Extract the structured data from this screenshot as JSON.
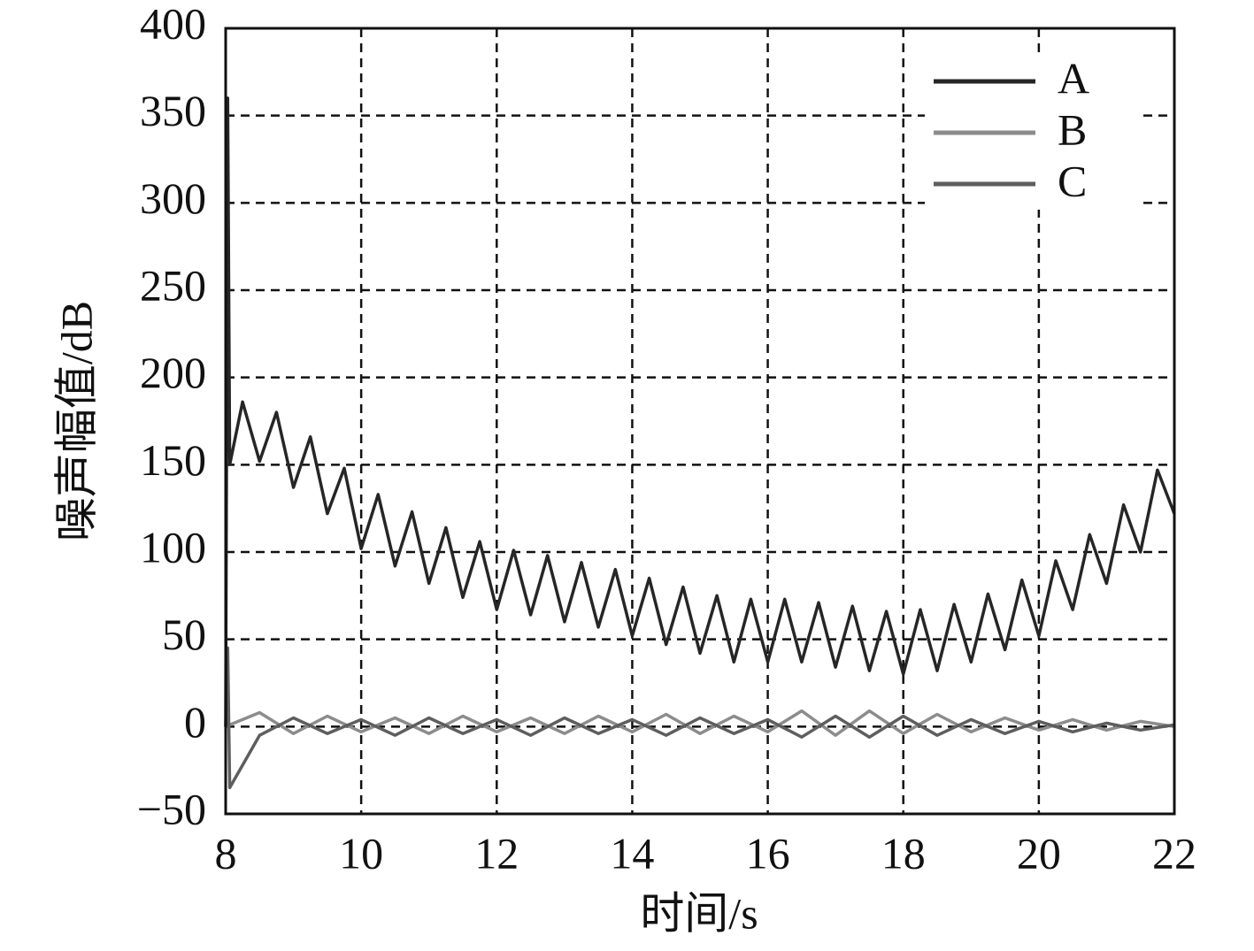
{
  "chart_data": {
    "type": "line",
    "xlabel": "时间/s",
    "ylabel": "噪声幅值/dB",
    "xlim": [
      8,
      22
    ],
    "xticks": [
      8,
      10,
      12,
      14,
      16,
      18,
      20,
      22
    ],
    "ylim": [
      -50,
      400
    ],
    "yticks": [
      {
        "value": -50,
        "label": "−50"
      },
      0,
      50,
      100,
      150,
      200,
      250,
      300,
      350,
      400
    ],
    "grid": true,
    "legend": "upper right",
    "series": [
      {
        "name": "A",
        "color": "#262626",
        "x": [
          8,
          8.03,
          8.06,
          8.25,
          8.5,
          8.75,
          9,
          9.25,
          9.5,
          9.75,
          10,
          10.25,
          10.5,
          10.75,
          11,
          11.25,
          11.5,
          11.75,
          12,
          12.25,
          12.5,
          12.75,
          13,
          13.25,
          13.5,
          13.75,
          14,
          14.25,
          14.5,
          14.75,
          15,
          15.25,
          15.5,
          15.75,
          16,
          16.25,
          16.5,
          16.75,
          17,
          17.25,
          17.5,
          17.75,
          18,
          18.25,
          18.5,
          18.75,
          19,
          19.25,
          19.5,
          19.75,
          20,
          20.25,
          20.5,
          20.75,
          21,
          21.25,
          21.5,
          21.75,
          22
        ],
        "values": [
          0,
          360,
          150,
          186,
          152,
          180,
          137,
          166,
          122,
          148,
          102,
          133,
          92,
          123,
          82,
          114,
          74,
          106,
          67,
          101,
          64,
          98,
          60,
          94,
          57,
          90,
          52,
          85,
          47,
          80,
          42,
          75,
          37,
          73,
          37,
          73,
          37,
          71,
          34,
          69,
          32,
          66,
          30,
          67,
          32,
          70,
          37,
          76,
          44,
          84,
          52,
          95,
          67,
          110,
          82,
          127,
          100,
          147,
          122
        ]
      },
      {
        "name": "B",
        "color": "#8c8c8c",
        "x": [
          8,
          8.5,
          9,
          9.5,
          10,
          10.5,
          11,
          11.5,
          12,
          12.5,
          13,
          13.5,
          14,
          14.5,
          15,
          15.5,
          16,
          16.5,
          17,
          17.5,
          18,
          18.5,
          19,
          19.5,
          20,
          20.5,
          21,
          21.5,
          22
        ],
        "values": [
          0,
          8,
          -4,
          6,
          -3,
          5,
          -4,
          6,
          -3,
          5,
          -4,
          6,
          -3,
          7,
          -4,
          6,
          -3,
          9,
          -5,
          9,
          -4,
          7,
          -3,
          5,
          -2,
          4,
          -2,
          3,
          0
        ]
      },
      {
        "name": "C",
        "color": "#5e5e5e",
        "x": [
          8,
          8.03,
          8.06,
          8.5,
          9,
          9.5,
          10,
          10.5,
          11,
          11.5,
          12,
          12.5,
          13,
          13.5,
          14,
          14.5,
          15,
          15.5,
          16,
          16.5,
          17,
          17.5,
          18,
          18.5,
          19,
          19.5,
          20,
          20.5,
          21,
          21.5,
          22
        ],
        "values": [
          0,
          45,
          -35,
          -5,
          5,
          -4,
          4,
          -5,
          5,
          -4,
          4,
          -5,
          5,
          -4,
          4,
          -5,
          5,
          -4,
          4,
          -6,
          6,
          -6,
          6,
          -5,
          4,
          -4,
          3,
          -3,
          2,
          -2,
          1
        ]
      }
    ]
  }
}
